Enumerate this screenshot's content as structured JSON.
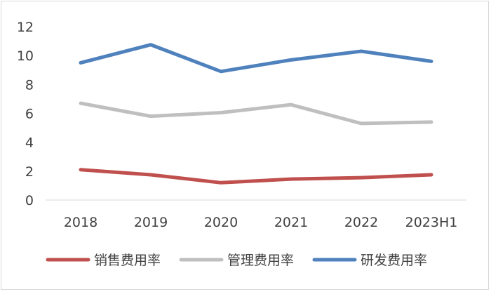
{
  "chart_data": {
    "type": "line",
    "categories": [
      "2018",
      "2019",
      "2020",
      "2021",
      "2022",
      "2023H1"
    ],
    "series": [
      {
        "name": "销售费用率",
        "color": "#c0504d",
        "values": [
          2.1,
          1.75,
          1.2,
          1.45,
          1.55,
          1.75
        ]
      },
      {
        "name": "管理费用率",
        "color": "#bfbfbf",
        "values": [
          6.7,
          5.8,
          6.05,
          6.6,
          5.3,
          5.4
        ]
      },
      {
        "name": "研发费用率",
        "color": "#4f81bd",
        "values": [
          9.5,
          10.75,
          8.9,
          9.7,
          10.3,
          9.6
        ]
      }
    ],
    "ylim": [
      0,
      12
    ],
    "yticks": [
      0,
      2,
      4,
      6,
      8,
      10,
      12
    ],
    "grid": false,
    "legend_position": "bottom"
  }
}
